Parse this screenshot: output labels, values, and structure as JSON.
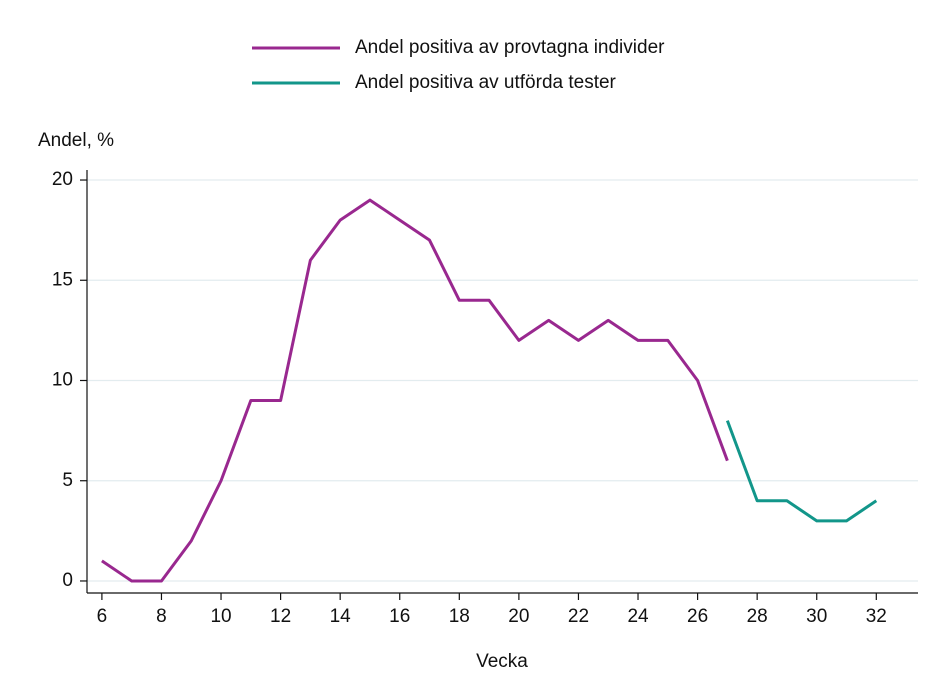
{
  "chart_data": {
    "type": "line",
    "y_label": "Andel, %",
    "x_label": "Vecka",
    "x": [
      6,
      7,
      8,
      9,
      10,
      11,
      12,
      13,
      14,
      15,
      16,
      17,
      18,
      19,
      20,
      21,
      22,
      23,
      24,
      25,
      26,
      27,
      28,
      29,
      30,
      31,
      32
    ],
    "series": [
      {
        "name": "Andel positiva av provtagna individer",
        "color": "#99288f",
        "values": [
          1,
          0,
          0,
          2,
          5,
          9,
          9,
          16,
          18,
          19,
          18,
          17,
          14,
          14,
          12,
          13,
          12,
          13,
          12,
          12,
          10,
          6,
          null,
          null,
          null,
          null,
          null
        ]
      },
      {
        "name": "Andel positiva av utförda tester",
        "color": "#12968a",
        "values": [
          null,
          null,
          null,
          null,
          null,
          null,
          null,
          null,
          null,
          null,
          null,
          null,
          null,
          null,
          null,
          null,
          null,
          null,
          null,
          null,
          null,
          8,
          4,
          4,
          3,
          3,
          4
        ]
      }
    ],
    "xlim": [
      5.5,
      33.4
    ],
    "xticks": [
      6,
      8,
      10,
      12,
      14,
      16,
      18,
      20,
      22,
      24,
      26,
      28,
      30,
      32
    ],
    "ylim": [
      -0.6,
      20.5
    ],
    "yticks": [
      0,
      5,
      10,
      15,
      20
    ],
    "grid": true
  }
}
